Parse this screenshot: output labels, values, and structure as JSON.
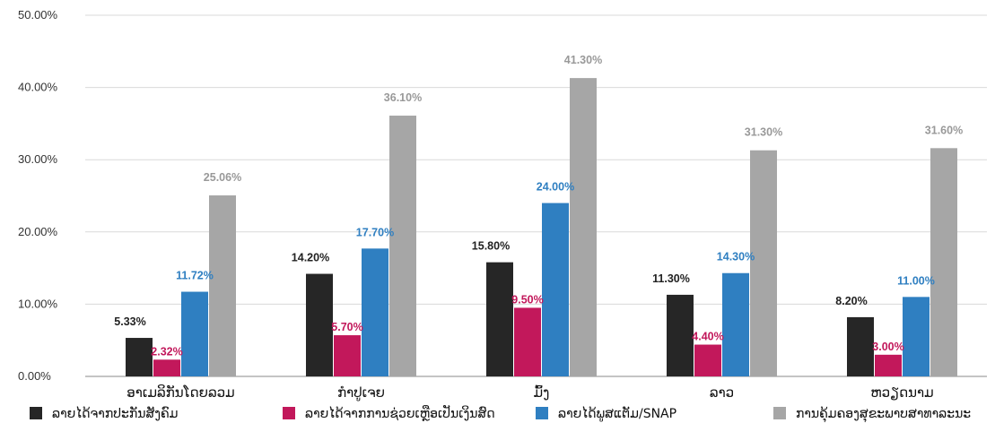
{
  "chart_data": {
    "type": "bar",
    "title": "",
    "xlabel": "",
    "ylabel": "",
    "ylim": [
      0,
      50
    ],
    "y_ticks": [
      0,
      10,
      20,
      30,
      40,
      50
    ],
    "y_tick_labels": [
      "0.00%",
      "10.00%",
      "20.00%",
      "30.00%",
      "40.00%",
      "50.00%"
    ],
    "grid": true,
    "legend_position": "bottom",
    "categories": [
      "ອາເມລິກັນໂດຍລວມ",
      "ກຳປູເຈຍ",
      "ມົ້ງ",
      "ລາວ",
      "ຫວຽດນາມ"
    ],
    "series": [
      {
        "name": "ລາຍໄດ້ຈາກປະກັນສັງຄົມ",
        "color": "#262626",
        "values": [
          5.33,
          14.2,
          15.8,
          11.3,
          8.2
        ],
        "labels": [
          "5.33%",
          "14.20%",
          "15.80%",
          "11.30%",
          "8.20%"
        ],
        "label_color": "#222222"
      },
      {
        "name": "ລາຍໄດ້ຈາກການຊ່ວຍເຫຼືອເປັນເງິນສົດ",
        "color": "#c2185b",
        "values": [
          2.32,
          5.7,
          9.5,
          4.4,
          3.0
        ],
        "labels": [
          "2.32%",
          "5.70%",
          "9.50%",
          "4.40%",
          "3.00%"
        ],
        "label_color": "#c2185b"
      },
      {
        "name": "ລາຍໄດ້ພູສແຕັມ/SNAP",
        "color": "#2f7fc1",
        "values": [
          11.72,
          17.7,
          24.0,
          14.3,
          11.0
        ],
        "labels": [
          "11.72%",
          "17.70%",
          "24.00%",
          "14.30%",
          "11.00%"
        ],
        "label_color": "#2f7fc1"
      },
      {
        "name": "ການຄຸ້ມຄອງສຸຂະພາບສາທາລະນະ",
        "color": "#a6a6a6",
        "values": [
          25.06,
          36.1,
          41.3,
          31.3,
          31.6
        ],
        "labels": [
          "25.06%",
          "36.10%",
          "41.30%",
          "31.30%",
          "31.60%"
        ],
        "label_color": "#999999"
      }
    ]
  }
}
